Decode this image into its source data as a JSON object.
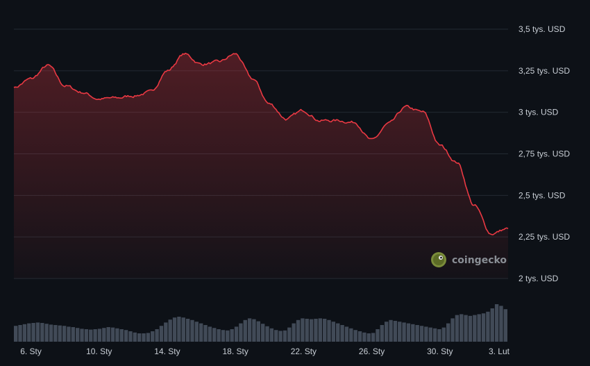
{
  "chart_data": {
    "type": "area",
    "watermark": "coingecko",
    "ylim": [
      2000,
      3500
    ],
    "y_ticks": [
      {
        "value": 3500,
        "label": "3,5 tys. USD"
      },
      {
        "value": 3250,
        "label": "3,25 tys. USD"
      },
      {
        "value": 3000,
        "label": "3 tys. USD"
      },
      {
        "value": 2750,
        "label": "2,75 tys. USD"
      },
      {
        "value": 2500,
        "label": "2,5 tys. USD"
      },
      {
        "value": 2250,
        "label": "2,25 tys. USD"
      },
      {
        "value": 2000,
        "label": "2 tys. USD"
      }
    ],
    "x_range": [
      "2025-01-05",
      "2025-02-03"
    ],
    "x_ticks": [
      {
        "date": "2025-01-06",
        "label": "6. Sty"
      },
      {
        "date": "2025-01-10",
        "label": "10. Sty"
      },
      {
        "date": "2025-01-14",
        "label": "14. Sty"
      },
      {
        "date": "2025-01-18",
        "label": "18. Sty"
      },
      {
        "date": "2025-01-22",
        "label": "22. Sty"
      },
      {
        "date": "2025-01-26",
        "label": "26. Sty"
      },
      {
        "date": "2025-01-30",
        "label": "30. Sty"
      },
      {
        "date": "2025-02-03",
        "label": "3. Lut"
      }
    ],
    "grid": true,
    "colors": {
      "line": "#ea3943",
      "volume": "#4b5563",
      "grid": "#232a33"
    },
    "price": [
      {
        "date": "2025-01-05",
        "value": 3150
      },
      {
        "date": "2025-01-06",
        "value": 3200
      },
      {
        "date": "2025-01-07",
        "value": 3280
      },
      {
        "date": "2025-01-08",
        "value": 3160
      },
      {
        "date": "2025-01-09",
        "value": 3120
      },
      {
        "date": "2025-01-10",
        "value": 3080
      },
      {
        "date": "2025-01-11",
        "value": 3085
      },
      {
        "date": "2025-01-12",
        "value": 3100
      },
      {
        "date": "2025-01-13",
        "value": 3120
      },
      {
        "date": "2025-01-14",
        "value": 3250
      },
      {
        "date": "2025-01-15",
        "value": 3350
      },
      {
        "date": "2025-01-16",
        "value": 3290
      },
      {
        "date": "2025-01-17",
        "value": 3300
      },
      {
        "date": "2025-01-18",
        "value": 3350
      },
      {
        "date": "2025-01-19",
        "value": 3200
      },
      {
        "date": "2025-01-20",
        "value": 3050
      },
      {
        "date": "2025-01-21",
        "value": 2960
      },
      {
        "date": "2025-01-22",
        "value": 3010
      },
      {
        "date": "2025-01-23",
        "value": 2950
      },
      {
        "date": "2025-01-24",
        "value": 2950
      },
      {
        "date": "2025-01-25",
        "value": 2940
      },
      {
        "date": "2025-01-26",
        "value": 2830
      },
      {
        "date": "2025-01-27",
        "value": 2930
      },
      {
        "date": "2025-01-28",
        "value": 3030
      },
      {
        "date": "2025-01-29",
        "value": 3000
      },
      {
        "date": "2025-01-30",
        "value": 2800
      },
      {
        "date": "2025-01-31",
        "value": 2700
      },
      {
        "date": "2025-02-01",
        "value": 2440
      },
      {
        "date": "2025-02-02",
        "value": 2270
      },
      {
        "date": "2025-02-03",
        "value": 2300
      }
    ],
    "volume": [
      38,
      40,
      42,
      44,
      45,
      46,
      45,
      43,
      41,
      40,
      39,
      38,
      36,
      35,
      33,
      31,
      30,
      29,
      30,
      31,
      33,
      35,
      34,
      32,
      30,
      28,
      25,
      22,
      20,
      20,
      21,
      25,
      30,
      38,
      46,
      53,
      58,
      60,
      58,
      55,
      52,
      48,
      44,
      40,
      36,
      33,
      30,
      28,
      27,
      30,
      36,
      44,
      52,
      56,
      54,
      49,
      43,
      37,
      32,
      28,
      26,
      27,
      34,
      44,
      52,
      56,
      55,
      54,
      55,
      56,
      55,
      52,
      48,
      44,
      40,
      36,
      32,
      28,
      25,
      22,
      20,
      21,
      30,
      40,
      48,
      52,
      50,
      48,
      46,
      44,
      42,
      40,
      38,
      36,
      34,
      32,
      30,
      34,
      44,
      56,
      64,
      66,
      64,
      62,
      64,
      66,
      68,
      72,
      80,
      90,
      86,
      78
    ]
  }
}
